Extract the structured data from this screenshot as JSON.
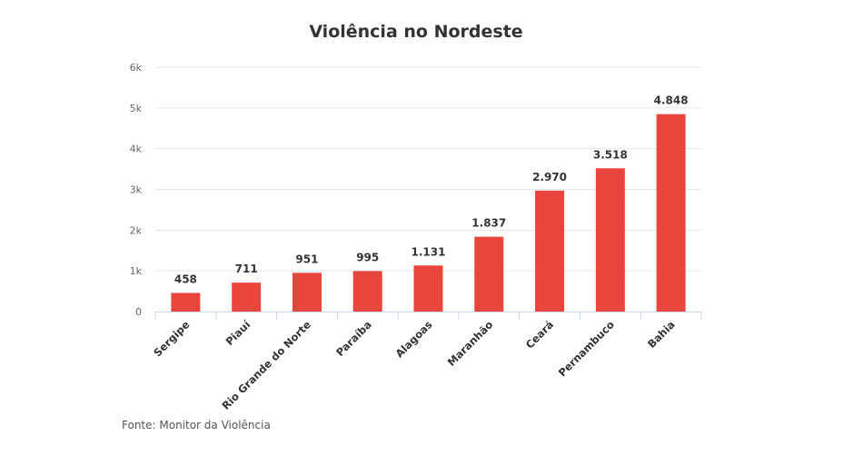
{
  "chart_data": {
    "type": "bar",
    "title": "Violência no Nordeste",
    "categories": [
      "Sergipe",
      "Piauí",
      "Rio Grande do Norte",
      "Paraíba",
      "Alagoas",
      "Maranhão",
      "Ceará",
      "Pernambuco",
      "Bahia"
    ],
    "values": [
      458,
      711,
      951,
      995,
      1131,
      1837,
      2970,
      3518,
      4848
    ],
    "data_labels": [
      "458",
      "711",
      "951",
      "995",
      "1.131",
      "1.837",
      "2.970",
      "3.518",
      "4.848"
    ],
    "ylim": [
      0,
      6000
    ],
    "yticks": [
      0,
      1000,
      2000,
      3000,
      4000,
      5000,
      6000
    ],
    "ytick_labels": [
      "0",
      "1k",
      "2k",
      "3k",
      "4k",
      "5k",
      "6k"
    ],
    "xlabel": "",
    "ylabel": "",
    "grid": true,
    "legend": "none",
    "bar_color": "#e8453c"
  },
  "source": "Fonte: Monitor da Violência"
}
